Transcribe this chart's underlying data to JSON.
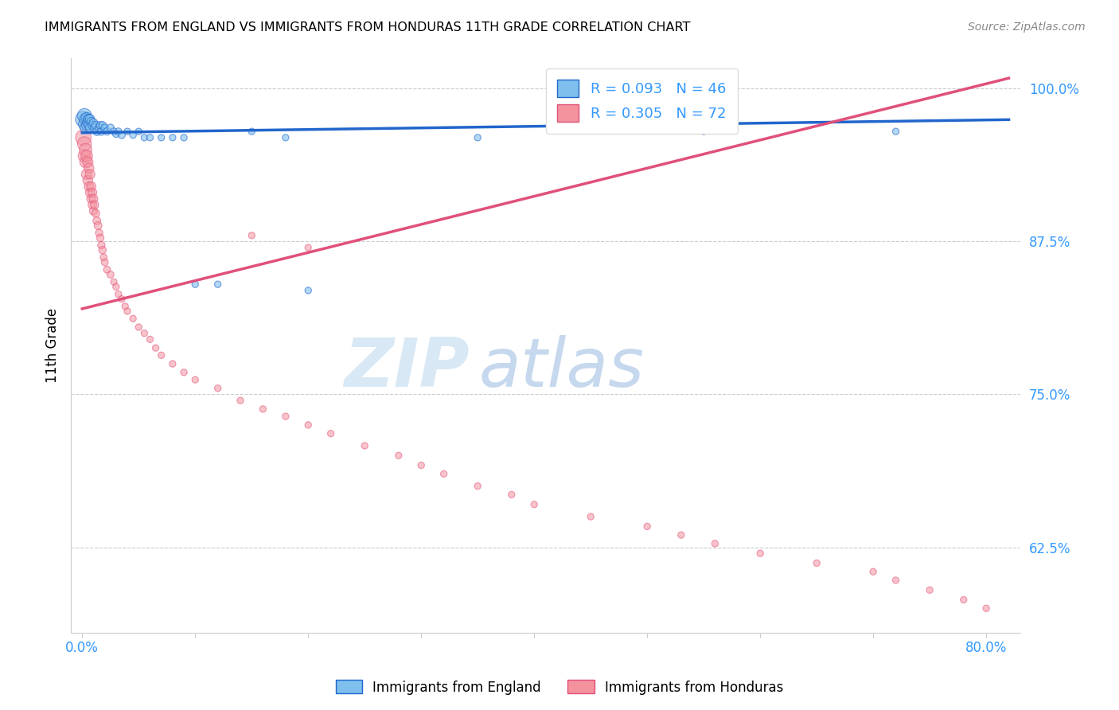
{
  "title": "IMMIGRANTS FROM ENGLAND VS IMMIGRANTS FROM HONDURAS 11TH GRADE CORRELATION CHART",
  "source": "Source: ZipAtlas.com",
  "ylabel": "11th Grade",
  "england_R": 0.093,
  "england_N": 46,
  "honduras_R": 0.305,
  "honduras_N": 72,
  "england_color": "#7fbfed",
  "honduras_color": "#f4929e",
  "england_line_color": "#2266cc",
  "honduras_line_color": "#e0507a",
  "watermark_zip": "ZIP",
  "watermark_atlas": "atlas",
  "england_x": [
    0.001,
    0.002,
    0.002,
    0.003,
    0.003,
    0.004,
    0.004,
    0.005,
    0.005,
    0.006,
    0.006,
    0.007,
    0.007,
    0.008,
    0.009,
    0.01,
    0.011,
    0.012,
    0.013,
    0.015,
    0.016,
    0.017,
    0.018,
    0.02,
    0.022,
    0.025,
    0.028,
    0.03,
    0.032,
    0.035,
    0.04,
    0.045,
    0.05,
    0.055,
    0.06,
    0.07,
    0.08,
    0.09,
    0.1,
    0.12,
    0.15,
    0.18,
    0.2,
    0.35,
    0.55,
    0.72
  ],
  "england_y": [
    0.975,
    0.978,
    0.971,
    0.975,
    0.968,
    0.976,
    0.97,
    0.975,
    0.972,
    0.975,
    0.97,
    0.975,
    0.968,
    0.973,
    0.97,
    0.972,
    0.968,
    0.97,
    0.965,
    0.968,
    0.97,
    0.965,
    0.97,
    0.968,
    0.965,
    0.968,
    0.965,
    0.963,
    0.965,
    0.962,
    0.965,
    0.962,
    0.965,
    0.96,
    0.96,
    0.96,
    0.96,
    0.96,
    0.84,
    0.84,
    0.965,
    0.96,
    0.835,
    0.96,
    0.965,
    0.965
  ],
  "england_sizes": [
    200,
    160,
    120,
    120,
    100,
    100,
    80,
    80,
    80,
    80,
    70,
    70,
    70,
    60,
    60,
    60,
    55,
    55,
    55,
    50,
    50,
    50,
    50,
    45,
    45,
    45,
    40,
    40,
    40,
    40,
    35,
    35,
    35,
    35,
    35,
    35,
    35,
    35,
    35,
    35,
    35,
    35,
    35,
    35,
    35,
    35
  ],
  "honduras_x": [
    0.001,
    0.002,
    0.002,
    0.003,
    0.003,
    0.004,
    0.004,
    0.005,
    0.005,
    0.006,
    0.006,
    0.007,
    0.007,
    0.008,
    0.008,
    0.009,
    0.009,
    0.01,
    0.01,
    0.011,
    0.012,
    0.013,
    0.014,
    0.015,
    0.016,
    0.017,
    0.018,
    0.019,
    0.02,
    0.022,
    0.025,
    0.028,
    0.03,
    0.032,
    0.035,
    0.038,
    0.04,
    0.045,
    0.05,
    0.055,
    0.06,
    0.065,
    0.07,
    0.08,
    0.09,
    0.1,
    0.12,
    0.14,
    0.16,
    0.18,
    0.2,
    0.22,
    0.25,
    0.28,
    0.3,
    0.32,
    0.35,
    0.38,
    0.4,
    0.45,
    0.5,
    0.53,
    0.56,
    0.6,
    0.65,
    0.7,
    0.72,
    0.75,
    0.78,
    0.8,
    0.15,
    0.2
  ],
  "honduras_y": [
    0.96,
    0.955,
    0.945,
    0.95,
    0.94,
    0.945,
    0.93,
    0.94,
    0.925,
    0.935,
    0.92,
    0.93,
    0.915,
    0.92,
    0.91,
    0.915,
    0.905,
    0.91,
    0.9,
    0.905,
    0.898,
    0.892,
    0.888,
    0.882,
    0.878,
    0.872,
    0.868,
    0.862,
    0.858,
    0.852,
    0.848,
    0.842,
    0.838,
    0.832,
    0.828,
    0.822,
    0.818,
    0.812,
    0.805,
    0.8,
    0.795,
    0.788,
    0.782,
    0.775,
    0.768,
    0.762,
    0.755,
    0.745,
    0.738,
    0.732,
    0.725,
    0.718,
    0.708,
    0.7,
    0.692,
    0.685,
    0.675,
    0.668,
    0.66,
    0.65,
    0.642,
    0.635,
    0.628,
    0.62,
    0.612,
    0.605,
    0.598,
    0.59,
    0.582,
    0.575,
    0.88,
    0.87
  ],
  "honduras_sizes": [
    200,
    160,
    130,
    130,
    110,
    110,
    90,
    90,
    80,
    80,
    75,
    75,
    70,
    70,
    65,
    65,
    60,
    60,
    55,
    55,
    50,
    50,
    50,
    45,
    45,
    45,
    45,
    40,
    40,
    40,
    40,
    35,
    35,
    35,
    35,
    35,
    35,
    35,
    35,
    35,
    35,
    35,
    35,
    35,
    35,
    35,
    35,
    35,
    35,
    35,
    35,
    35,
    35,
    35,
    35,
    35,
    35,
    35,
    35,
    35,
    35,
    35,
    35,
    35,
    35,
    35,
    35,
    35,
    35,
    35,
    35,
    35
  ],
  "xlim": [
    -0.01,
    0.83
  ],
  "ylim": [
    0.555,
    1.025
  ],
  "ytick_vals": [
    1.0,
    0.875,
    0.75,
    0.625
  ],
  "ytick_labels": [
    "100.0%",
    "87.5%",
    "75.0%",
    "62.5%"
  ],
  "xtick_vals": [
    0.0,
    0.1,
    0.2,
    0.3,
    0.4,
    0.5,
    0.6,
    0.7,
    0.8
  ],
  "xtick_labels": [
    "0.0%",
    "",
    "",
    "",
    "",
    "",
    "",
    "",
    "80.0%"
  ]
}
